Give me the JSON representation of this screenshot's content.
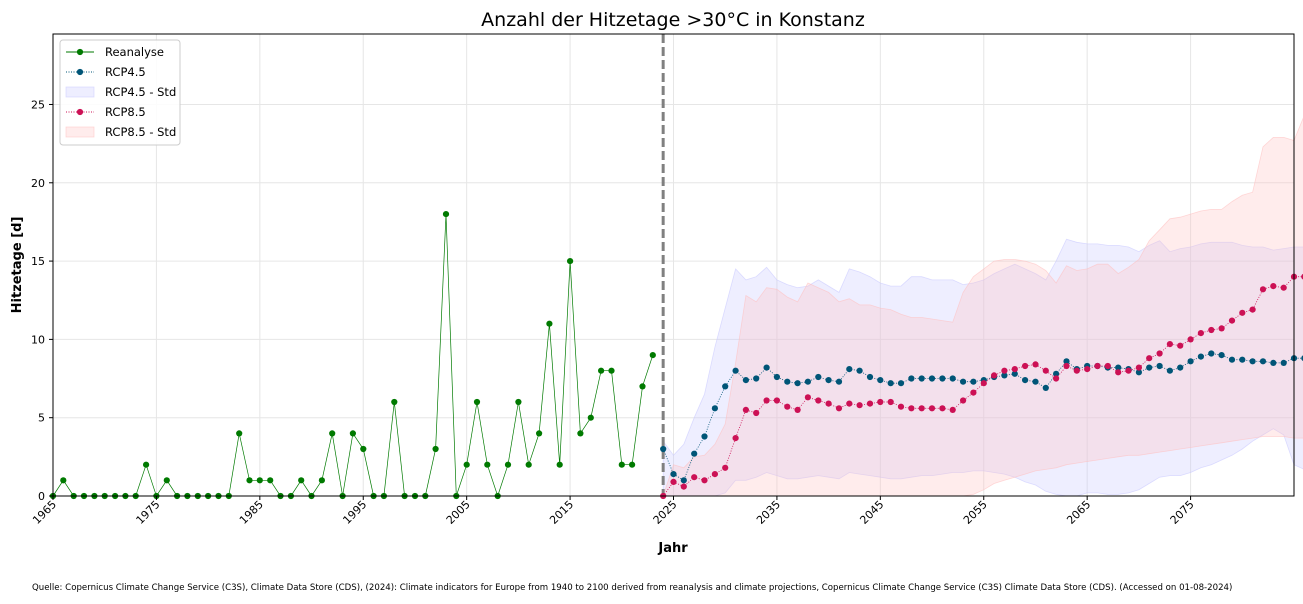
{
  "chart_data": {
    "type": "line",
    "title": "Anzahl der Hitzetage >30°C in Konstanz",
    "xlabel": "Jahr",
    "ylabel": "Hitzetage [d]",
    "xlim": [
      1965,
      2085
    ],
    "ylim": [
      0,
      29.5
    ],
    "xticks": [
      1965,
      1975,
      1985,
      1995,
      2005,
      2015,
      2025,
      2035,
      2045,
      2055,
      2065,
      2075
    ],
    "yticks": [
      0,
      5,
      10,
      15,
      20,
      25
    ],
    "grid": true,
    "legend_position": "top-left",
    "divider_year": 2024,
    "colors": {
      "reanalyse": "#007a00",
      "rcp45": "#005577",
      "rcp45_band": "#c8c8ff",
      "rcp85": "#cc1155",
      "rcp85_band": "#ffc0c0",
      "divider": "#808080"
    },
    "series": [
      {
        "name": "Reanalyse",
        "x_start": 1965,
        "values": [
          0,
          1,
          0,
          0,
          0,
          0,
          0,
          0,
          0,
          2,
          0,
          1,
          0,
          0,
          0,
          0,
          0,
          0,
          4,
          1,
          1,
          1,
          0,
          0,
          1,
          0,
          1,
          4,
          0,
          4,
          3,
          0,
          0,
          6,
          0,
          0,
          0,
          3,
          18,
          0,
          2,
          6,
          2,
          0,
          2,
          6,
          2,
          4,
          11,
          2,
          15,
          4,
          5,
          8,
          8,
          2,
          2,
          7,
          9
        ]
      },
      {
        "name": "RCP4.5",
        "x_start": 2024,
        "values": [
          3.0,
          1.4,
          1.0,
          2.7,
          3.8,
          5.6,
          7.0,
          8.0,
          7.4,
          7.5,
          8.2,
          7.6,
          7.3,
          7.2,
          7.3,
          7.6,
          7.4,
          7.3,
          8.1,
          8.0,
          7.6,
          7.4,
          7.2,
          7.2,
          7.5,
          7.5,
          7.5,
          7.5,
          7.5,
          7.3,
          7.3,
          7.4,
          7.6,
          7.7,
          7.8,
          7.4,
          7.3,
          6.9,
          7.8,
          8.6,
          8.1,
          8.3,
          8.3,
          8.2,
          8.2,
          8.1,
          7.9,
          8.2,
          8.3,
          8.0,
          8.2,
          8.6,
          8.9,
          9.1,
          9.0,
          8.7,
          8.7,
          8.6,
          8.6,
          8.5,
          8.5,
          8.8,
          8.8
        ]
      },
      {
        "name": "RCP4.5 - Std",
        "x_start": 2024,
        "lower": [
          0,
          0,
          0,
          0,
          0,
          0,
          0.2,
          1.0,
          1.0,
          1.2,
          1.5,
          1.3,
          1.1,
          1.1,
          1.2,
          1.3,
          1.2,
          1.1,
          1.5,
          1.4,
          1.3,
          1.2,
          1.1,
          1.1,
          1.2,
          1.3,
          1.3,
          1.4,
          1.5,
          1.5,
          1.6,
          1.6,
          1.5,
          1.4,
          1.2,
          0.9,
          0.7,
          0.3,
          0.1,
          0,
          0,
          0.2,
          0.2,
          0.1,
          0.1,
          0.2,
          0.4,
          0.8,
          1.2,
          1.3,
          1.3,
          1.5,
          1.8,
          2.0,
          2.3,
          2.6,
          3.0,
          3.5,
          3.9,
          4.3,
          3.9,
          2.0,
          1.7
        ],
        "upper": [
          3.5,
          2.6,
          3.3,
          5.0,
          6.5,
          9.5,
          12.0,
          14.5,
          13.8,
          14.0,
          14.6,
          13.8,
          13.5,
          13.3,
          13.4,
          13.8,
          13.4,
          13.0,
          14.5,
          14.3,
          14.0,
          13.6,
          13.4,
          13.4,
          14.0,
          14.0,
          13.8,
          13.8,
          13.8,
          13.5,
          13.6,
          13.8,
          14.2,
          14.5,
          14.8,
          14.5,
          14.2,
          13.8,
          15.0,
          16.4,
          16.2,
          16.1,
          16.1,
          16.0,
          16.0,
          15.9,
          15.6,
          16.0,
          16.3,
          15.6,
          15.8,
          15.9,
          16.1,
          16.2,
          16.2,
          16.2,
          16.0,
          15.9,
          15.9,
          15.7,
          15.8,
          15.9,
          15.9
        ]
      },
      {
        "name": "RCP8.5",
        "x_start": 2024,
        "values": [
          0,
          0.9,
          0.6,
          1.2,
          1.0,
          1.4,
          1.8,
          3.7,
          5.5,
          5.3,
          6.1,
          6.1,
          5.7,
          5.5,
          6.3,
          6.1,
          5.9,
          5.6,
          5.9,
          5.8,
          5.9,
          6.0,
          6.0,
          5.7,
          5.6,
          5.6,
          5.6,
          5.6,
          5.5,
          6.1,
          6.6,
          7.2,
          7.7,
          8.0,
          8.1,
          8.3,
          8.4,
          8.0,
          7.5,
          8.3,
          8.0,
          8.1,
          8.3,
          8.3,
          7.9,
          8.0,
          8.2,
          8.8,
          9.1,
          9.7,
          9.6,
          10.0,
          10.4,
          10.6,
          10.7,
          11.2,
          11.7,
          11.9,
          13.2,
          13.4,
          13.3,
          14.0,
          14.0
        ]
      },
      {
        "name": "RCP8.5 - Std",
        "x_start": 2024,
        "lower": [
          0,
          0,
          0,
          0,
          0,
          0,
          0,
          0,
          0,
          0,
          0,
          0,
          0,
          0,
          0,
          0,
          0,
          0,
          0,
          0,
          0,
          0,
          0,
          0,
          0,
          0,
          0,
          0,
          0,
          0,
          0.1,
          0.4,
          0.8,
          1.0,
          1.2,
          1.4,
          1.6,
          1.7,
          1.8,
          2.0,
          2.1,
          2.2,
          2.3,
          2.4,
          2.5,
          2.6,
          2.6,
          2.7,
          2.8,
          2.9,
          3.0,
          3.1,
          3.2,
          3.3,
          3.4,
          3.5,
          3.6,
          3.7,
          3.8,
          3.8,
          3.8,
          3.7,
          3.7
        ],
        "upper": [
          0,
          2.0,
          1.8,
          2.5,
          2.6,
          3.3,
          4.6,
          8.5,
          12.8,
          12.4,
          13.3,
          13.2,
          12.7,
          12.4,
          13.6,
          13.3,
          13.0,
          12.4,
          12.6,
          12.2,
          12.2,
          12.0,
          11.9,
          11.6,
          11.4,
          11.4,
          11.3,
          11.2,
          11.1,
          13.0,
          14.0,
          14.5,
          15.0,
          15.1,
          15.1,
          15.0,
          14.8,
          14.4,
          13.6,
          14.7,
          14.4,
          14.5,
          14.8,
          14.8,
          14.2,
          14.6,
          15.1,
          16.3,
          17.0,
          17.7,
          17.8,
          18.0,
          18.2,
          18.3,
          18.3,
          18.8,
          19.2,
          19.4,
          22.3,
          22.9,
          22.9,
          22.7,
          24.3
        ]
      }
    ]
  },
  "source_text": "Quelle: Copernicus Climate Change Service (C3S), Climate Data Store (CDS), (2024): Climate indicators for Europe from 1940 to 2100 derived from reanalysis and climate projections, Copernicus Climate Change Service (C3S) Climate Data Store (CDS). (Accessed on 01-08-2024)"
}
